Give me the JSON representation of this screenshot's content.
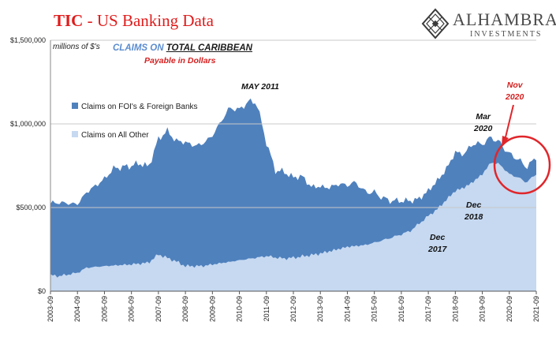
{
  "title": {
    "prefix": "TIC",
    "rest": " - US Banking Data"
  },
  "logo": {
    "name": "ALHAMBRA",
    "sub": "INVESTMENTS",
    "icon": "diamond-lattice-icon"
  },
  "units_label": "millions of $'s",
  "subtitle": {
    "part1": "CLAIMS ON ",
    "part2": "TOTAL CARIBBEAN",
    "line2": "Payable  in Dollars"
  },
  "annotations": {
    "may2011": "MAY 2011",
    "dec2017_a": "Dec",
    "dec2017_b": "2017",
    "dec2018_a": "Dec",
    "dec2018_b": "2018",
    "mar2020_a": "Mar",
    "mar2020_b": "2020",
    "nov2020_a": "Nov",
    "nov2020_b": "2020"
  },
  "colors": {
    "fois": "#4f81bd",
    "other": "#c6d9f1",
    "accent_red": "#e01b1b",
    "circle": "#e0262b"
  },
  "chart_data": {
    "type": "area",
    "stacked": true,
    "yticks": [
      0,
      500000,
      1000000,
      1500000
    ],
    "ytick_labels": [
      "$0",
      "$500,000",
      "$1,000,000",
      "$1,500,000"
    ],
    "ylim": [
      0,
      1500000
    ],
    "xlim": [
      2003.67,
      2021.67
    ],
    "xticks": [
      2003.67,
      2004.67,
      2005.67,
      2006.67,
      2007.67,
      2008.67,
      2009.67,
      2010.67,
      2011.67,
      2012.67,
      2013.67,
      2014.67,
      2015.67,
      2016.67,
      2017.67,
      2018.67,
      2019.67,
      2020.67,
      2021.67
    ],
    "xtick_labels": [
      "2003-09",
      "2004-09",
      "2005-09",
      "2006-09",
      "2007-09",
      "2008-09",
      "2009-09",
      "2010-09",
      "2011-09",
      "2012-09",
      "2013-09",
      "2014-09",
      "2015-09",
      "2016-09",
      "2017-09",
      "2018-09",
      "2019-09",
      "2020-09",
      "2021-09"
    ],
    "legend": {
      "position": "left-middle",
      "items": [
        "Claims on FOI's & Foreign Banks",
        "Claims on All Other"
      ]
    },
    "series": [
      {
        "name": "Claims on All Other",
        "x": [
          2003.67,
          2004.0,
          2004.67,
          2005.0,
          2005.67,
          2006.67,
          2007.3,
          2007.67,
          2008.3,
          2008.67,
          2009.3,
          2009.67,
          2010.3,
          2010.67,
          2011.3,
          2011.67,
          2012.3,
          2012.67,
          2013.3,
          2013.67,
          2014.3,
          2014.67,
          2015.3,
          2015.67,
          2016.3,
          2016.67,
          2017.0,
          2017.3,
          2017.67,
          2018.0,
          2018.3,
          2018.67,
          2019.0,
          2019.3,
          2019.67,
          2020.0,
          2020.3,
          2020.67,
          2021.0,
          2021.3,
          2021.67
        ],
        "y": [
          95000,
          90000,
          110000,
          140000,
          150000,
          160000,
          170000,
          220000,
          180000,
          150000,
          150000,
          160000,
          175000,
          185000,
          200000,
          210000,
          195000,
          200000,
          215000,
          225000,
          250000,
          265000,
          275000,
          290000,
          320000,
          340000,
          360000,
          400000,
          450000,
          490000,
          540000,
          600000,
          620000,
          650000,
          700000,
          770000,
          760000,
          700000,
          680000,
          650000,
          700000
        ]
      },
      {
        "name": "Claims on FOI's & Foreign Banks",
        "x": [
          2003.67,
          2004.0,
          2004.67,
          2005.0,
          2005.67,
          2006.0,
          2006.67,
          2007.0,
          2007.3,
          2007.67,
          2008.0,
          2008.3,
          2008.67,
          2009.0,
          2009.3,
          2009.67,
          2010.0,
          2010.3,
          2010.67,
          2011.0,
          2011.3,
          2011.67,
          2012.0,
          2012.3,
          2012.67,
          2013.0,
          2013.3,
          2013.67,
          2014.0,
          2014.3,
          2014.67,
          2015.0,
          2015.3,
          2015.67,
          2016.0,
          2016.3,
          2016.67,
          2017.0,
          2017.3,
          2017.67,
          2018.0,
          2018.3,
          2018.67,
          2019.0,
          2019.3,
          2019.67,
          2020.0,
          2020.3,
          2020.67,
          2021.0,
          2021.3,
          2021.67
        ],
        "y": [
          430000,
          440000,
          410000,
          450000,
          520000,
          580000,
          590000,
          600000,
          570000,
          690000,
          760000,
          720000,
          740000,
          720000,
          730000,
          770000,
          850000,
          920000,
          900000,
          940000,
          930000,
          680000,
          520000,
          520000,
          480000,
          480000,
          410000,
          400000,
          380000,
          390000,
          370000,
          380000,
          320000,
          300000,
          250000,
          220000,
          200000,
          180000,
          150000,
          150000,
          170000,
          180000,
          230000,
          200000,
          230000,
          180000,
          150000,
          130000,
          120000,
          110000,
          90000,
          100000
        ]
      }
    ]
  }
}
